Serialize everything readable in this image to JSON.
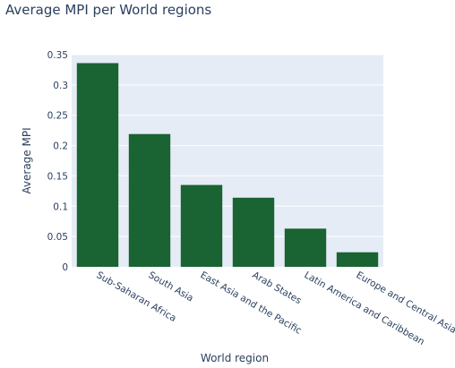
{
  "chart_data": {
    "type": "bar",
    "title": "Average MPI per World regions",
    "xlabel": "World region",
    "ylabel": "Average MPI",
    "categories": [
      "Sub-Saharan Africa",
      "South Asia",
      "East Asia and the Pacific",
      "Arab States",
      "Latin America and Caribbean",
      "Europe and Central Asia"
    ],
    "values": [
      0.336,
      0.219,
      0.135,
      0.114,
      0.063,
      0.024
    ],
    "ylim": [
      0,
      0.35
    ],
    "yticks": [
      0,
      0.05,
      0.1,
      0.15,
      0.2,
      0.25,
      0.3,
      0.35
    ],
    "ytick_labels": [
      "0",
      "0.05",
      "0.1",
      "0.15",
      "0.2",
      "0.25",
      "0.3",
      "0.35"
    ],
    "grid": true,
    "colors": {
      "bar": "#1a6332",
      "plot_bg": "#e5ecf6",
      "grid": "#ffffff",
      "text": "#2a3f5f"
    }
  }
}
